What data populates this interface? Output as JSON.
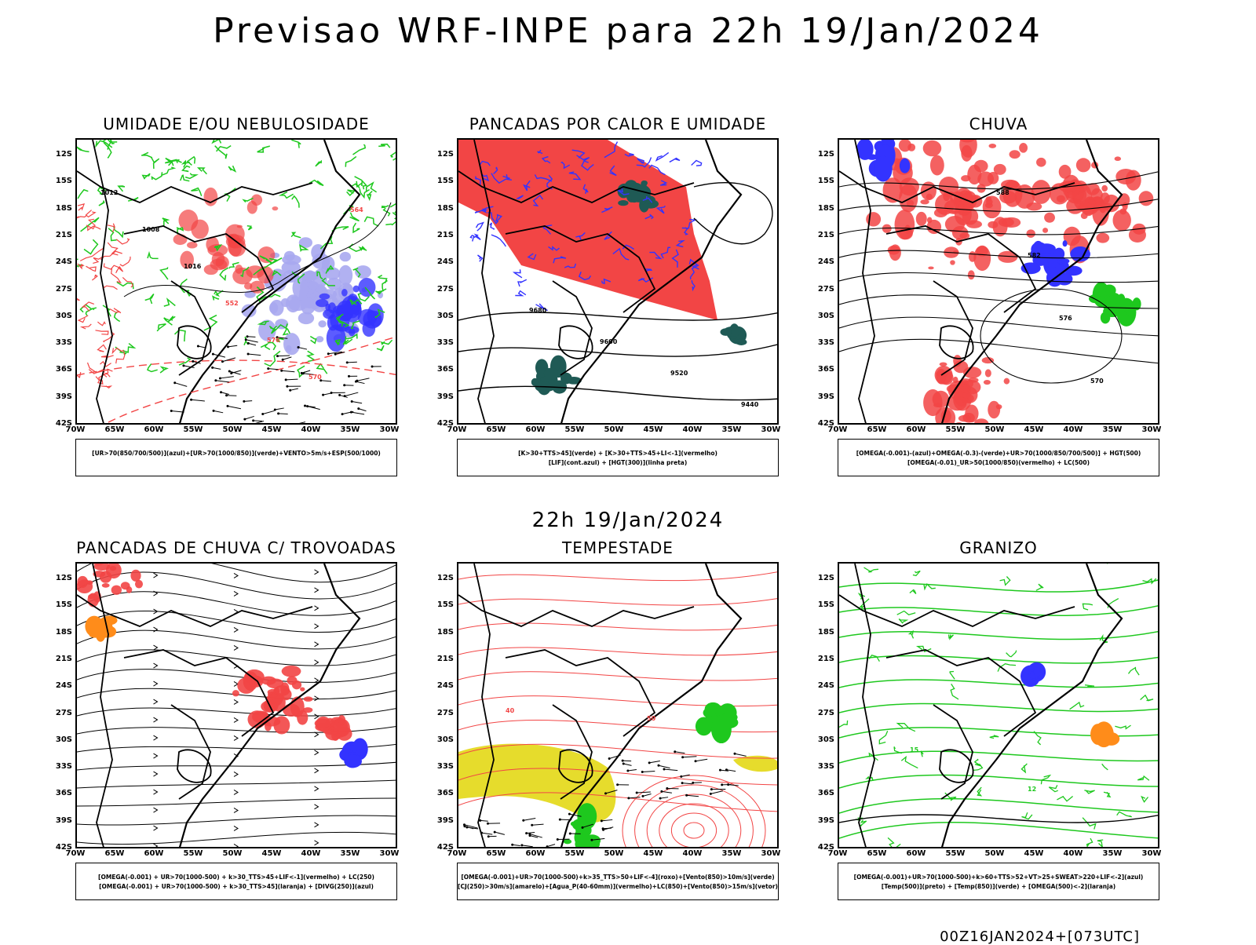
{
  "header": {
    "title": "Previsao WRF-INPE  para 22h 19/Jan/2024",
    "subtitle": "22h 19/Jan/2024",
    "footer": "00Z16JAN2024+[073UTC]"
  },
  "axes": {
    "lat_labels": [
      "12S",
      "15S",
      "18S",
      "21S",
      "24S",
      "27S",
      "30S",
      "33S",
      "36S",
      "39S",
      "42S"
    ],
    "lon_labels": [
      "70W",
      "65W",
      "60W",
      "55W",
      "50W",
      "45W",
      "40W",
      "35W",
      "30W"
    ]
  },
  "colors": {
    "red": "#f24545",
    "green": "#1ec81e",
    "blue": "#3333ff",
    "lavender": "#a8a8f0",
    "darkteal": "#1f5a55",
    "yellow": "#e6dc2c",
    "orange": "#ff8c1a",
    "black": "#000000"
  },
  "panels": [
    {
      "title": "UMIDADE E/OU NEBULOSIDADE",
      "legend": [
        "[UR>70(850/700/500)](azul)+[UR>70(1000/850)](verde)+VENTO>5m/s+ESP(500/1000)"
      ],
      "contour_labels": [
        "1012",
        "1008",
        "1016",
        "552",
        "576",
        "570",
        "564"
      ]
    },
    {
      "title": "PANCADAS POR CALOR E UMIDADE",
      "legend": [
        "[K>30+TTS>45](verde)  +  [K>30+TTS>45+LI<-1](vermelho)",
        "[LIF](cont.azul)  +  [HGT(300)](linha preta)"
      ],
      "contour_labels": [
        "9680",
        "9600",
        "9520",
        "9440"
      ]
    },
    {
      "title": "CHUVA",
      "legend": [
        "[OMEGA(-0.001)-(azul)+OMEGA(-0.3)-(verde)+UR>70(1000/850/700/500)]  +  HGT(500)",
        "[OMEGA(-0.01)_UR>50(1000/850)(vermelho) + LC(500)"
      ],
      "contour_labels": [
        "588",
        "582",
        "576",
        "570"
      ]
    },
    {
      "title": "PANCADAS DE CHUVA C/ TROVOADAS",
      "legend": [
        "[OMEGA(-0.001) + UR>70(1000-500) + k>30_TTS>45+LIF<-1](vermelho) + LC(250)",
        "[OMEGA(-0.001) + UR>70(1000-500) + k>30_TTS>45](laranja) + [DIVG(250)](azul)"
      ],
      "contour_labels": []
    },
    {
      "title": "TEMPESTADE",
      "legend": [
        "[OMEGA(-0.001)+UR>70(1000-500)+k>35_TTS>50+LIF<-4](roxo)+[Vento(850)>10m/s](verde)",
        "[CJ(250)>30m/s](amarelo)+[Agua_P(40-60mm)](vermelho)+LC(850)+[Vento(850)>15m/s](vetor)"
      ],
      "contour_labels": [
        "40",
        "50"
      ]
    },
    {
      "title": "GRANIZO",
      "legend": [
        "[OMEGA(-0.001)+UR>70(1000-500)+k>60+TTS>52+VT>25+SWEAT>220+LIF<-2](azul)",
        "[Temp(500)](preto)  +  [Temp(850)](verde)  +  [OMEGA(500)<-2](laranja)"
      ],
      "contour_labels": [
        "15",
        "12"
      ]
    }
  ]
}
